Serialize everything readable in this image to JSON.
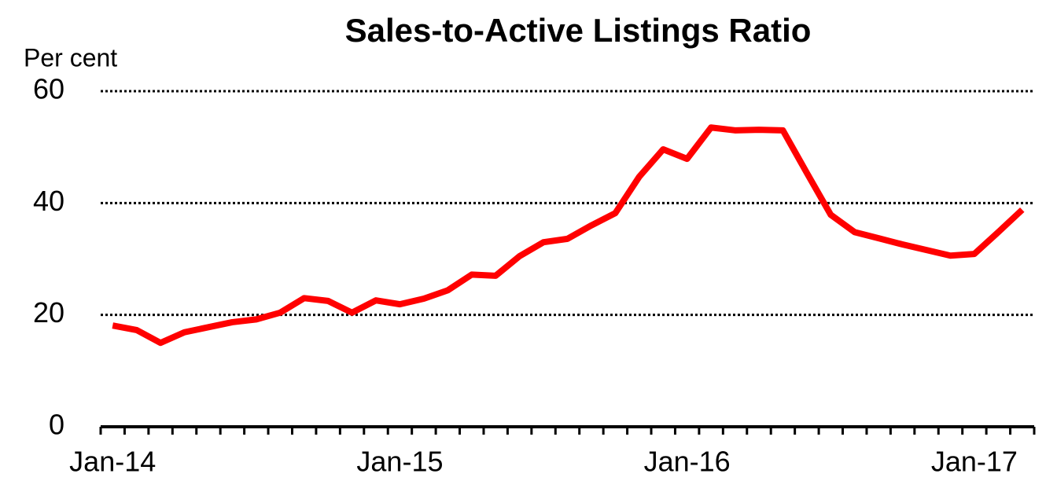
{
  "chart_data": {
    "type": "line",
    "title": "Sales-to-Active Listings Ratio",
    "y_label": "Per cent",
    "categories": [
      "Jan-14",
      null,
      null,
      null,
      null,
      null,
      null,
      null,
      null,
      null,
      null,
      null,
      "Jan-15",
      null,
      null,
      null,
      null,
      null,
      null,
      null,
      null,
      null,
      null,
      null,
      "Jan-16",
      null,
      null,
      null,
      null,
      null,
      null,
      null,
      null,
      null,
      null,
      null,
      "Jan-17",
      null,
      null
    ],
    "series": [
      {
        "name": "Sales-to-Active Listings Ratio",
        "color": "#ff0000",
        "values": [
          18.1,
          17.3,
          15.0,
          16.9,
          17.8,
          18.7,
          19.2,
          20.4,
          23.0,
          22.5,
          20.4,
          22.6,
          21.9,
          22.9,
          24.4,
          27.2,
          27.0,
          30.5,
          33.0,
          33.6,
          36.0,
          38.2,
          44.7,
          49.6,
          47.9,
          53.5,
          53.0,
          53.1,
          53.0,
          45.4,
          37.9,
          34.8,
          33.7,
          32.6,
          31.6,
          30.6,
          30.9,
          34.8,
          38.8
        ]
      }
    ],
    "ylim": [
      0,
      60
    ],
    "yticks": [
      0,
      20,
      40,
      60
    ],
    "grid": true
  }
}
